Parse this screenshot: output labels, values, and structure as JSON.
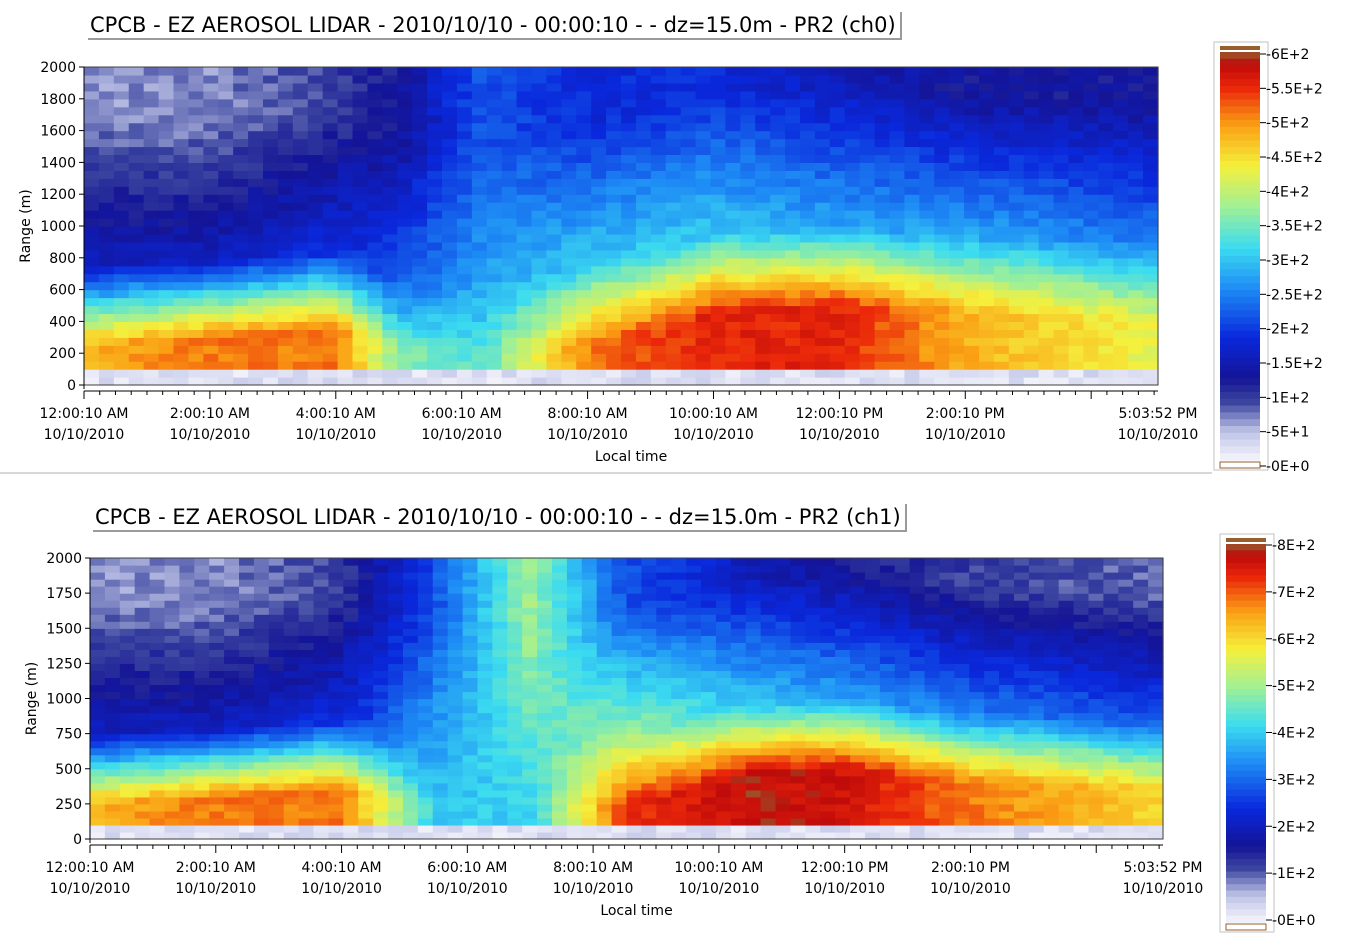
{
  "charts": [
    {
      "title": "CPCB - EZ AEROSOL LIDAR - 2010/10/10 - 00:00:10 -  - dz=15.0m - PR2 (ch0)",
      "chart_data": {
        "type": "heatmap",
        "title": "CPCB - EZ AEROSOL LIDAR - 2010/10/10 - 00:00:10 -  - dz=15.0m - PR2 (ch0)",
        "xlabel": "Local time",
        "ylabel": "Range (m)",
        "ylim": [
          0,
          2000
        ],
        "xlim": [
          "12:00:10 AM",
          "5:03:52 PM"
        ],
        "y_ticks": [
          "0",
          "200",
          "400",
          "600",
          "800",
          "1000",
          "1200",
          "1400",
          "1600",
          "1800",
          "2000"
        ],
        "x_ticks": [
          {
            "time": "12:00:10 AM",
            "date": "10/10/2010"
          },
          {
            "time": "2:00:10 AM",
            "date": "10/10/2010"
          },
          {
            "time": "4:00:10 AM",
            "date": "10/10/2010"
          },
          {
            "time": "6:00:10 AM",
            "date": "10/10/2010"
          },
          {
            "time": "8:00:10 AM",
            "date": "10/10/2010"
          },
          {
            "time": "10:00:10 AM",
            "date": "10/10/2010"
          },
          {
            "time": "12:00:10 PM",
            "date": "10/10/2010"
          },
          {
            "time": "2:00:10 PM",
            "date": "10/10/2010"
          },
          {
            "time": "5:03:52 PM",
            "date": "10/10/2010"
          }
        ],
        "colorbar": {
          "range": [
            0,
            600
          ],
          "labels": [
            "6E+2",
            "5.5E+2",
            "5E+2",
            "4.5E+2",
            "4E+2",
            "3.5E+2",
            "3E+2",
            "2.5E+2",
            "2E+2",
            "1.5E+2",
            "1E+2",
            "5E+1",
            "0E+0"
          ]
        },
        "description_profile": [
          {
            "time_h": 0.0,
            "layer_top_m": 250,
            "layer_level": 0.8,
            "mid_level": 0.25,
            "upper_level": 0.1
          },
          {
            "time_h": 2.0,
            "layer_top_m": 300,
            "layer_level": 0.85,
            "mid_level": 0.25,
            "upper_level": 0.1
          },
          {
            "time_h": 4.0,
            "layer_top_m": 350,
            "layer_level": 0.85,
            "mid_level": 0.3,
            "upper_level": 0.15
          },
          {
            "time_h": 5.0,
            "layer_top_m": 200,
            "layer_level": 0.6,
            "mid_level": 0.35,
            "upper_level": 0.2
          },
          {
            "time_h": 6.3,
            "layer_top_m": 150,
            "layer_level": 0.55,
            "mid_level": 0.45,
            "upper_level": 0.35
          },
          {
            "time_h": 8.0,
            "layer_top_m": 250,
            "layer_level": 0.85,
            "mid_level": 0.5,
            "upper_level": 0.3
          },
          {
            "time_h": 10.0,
            "layer_top_m": 450,
            "layer_level": 0.92,
            "mid_level": 0.5,
            "upper_level": 0.3
          },
          {
            "time_h": 12.0,
            "layer_top_m": 500,
            "layer_level": 0.92,
            "mid_level": 0.45,
            "upper_level": 0.25
          },
          {
            "time_h": 14.0,
            "layer_top_m": 450,
            "layer_level": 0.8,
            "mid_level": 0.45,
            "upper_level": 0.2
          },
          {
            "time_h": 17.06,
            "layer_top_m": 400,
            "layer_level": 0.7,
            "mid_level": 0.4,
            "upper_level": 0.2
          }
        ]
      }
    },
    {
      "title": "CPCB - EZ AEROSOL LIDAR - 2010/10/10 - 00:00:10 -  - dz=15.0m - PR2 (ch1)",
      "chart_data": {
        "type": "heatmap",
        "title": "CPCB - EZ AEROSOL LIDAR - 2010/10/10 - 00:00:10 -  - dz=15.0m - PR2 (ch1)",
        "xlabel": "Local time",
        "ylabel": "Range (m)",
        "ylim": [
          0,
          2000
        ],
        "xlim": [
          "12:00:10 AM",
          "5:03:52 PM"
        ],
        "y_ticks": [
          "0",
          "250",
          "500",
          "750",
          "1000",
          "1250",
          "1500",
          "1750",
          "2000"
        ],
        "x_ticks": [
          {
            "time": "12:00:10 AM",
            "date": "10/10/2010"
          },
          {
            "time": "2:00:10 AM",
            "date": "10/10/2010"
          },
          {
            "time": "4:00:10 AM",
            "date": "10/10/2010"
          },
          {
            "time": "6:00:10 AM",
            "date": "10/10/2010"
          },
          {
            "time": "8:00:10 AM",
            "date": "10/10/2010"
          },
          {
            "time": "10:00:10 AM",
            "date": "10/10/2010"
          },
          {
            "time": "12:00:10 PM",
            "date": "10/10/2010"
          },
          {
            "time": "2:00:10 PM",
            "date": "10/10/2010"
          },
          {
            "time": "5:03:52 PM",
            "date": "10/10/2010"
          }
        ],
        "colorbar": {
          "range": [
            0,
            800
          ],
          "labels": [
            "8E+2",
            "7E+2",
            "6E+2",
            "5E+2",
            "4E+2",
            "3E+2",
            "2E+2",
            "1E+2",
            "0E+0"
          ]
        },
        "description_profile": [
          {
            "time_h": 0.0,
            "layer_top_m": 250,
            "layer_level": 0.8,
            "mid_level": 0.25,
            "upper_level": 0.1
          },
          {
            "time_h": 2.0,
            "layer_top_m": 300,
            "layer_level": 0.85,
            "mid_level": 0.25,
            "upper_level": 0.1
          },
          {
            "time_h": 4.0,
            "layer_top_m": 350,
            "layer_level": 0.85,
            "mid_level": 0.3,
            "upper_level": 0.15
          },
          {
            "time_h": 5.5,
            "layer_top_m": 200,
            "layer_level": 0.5,
            "mid_level": 0.45,
            "upper_level": 0.35
          },
          {
            "time_h": 7.0,
            "layer_top_m": 150,
            "layer_level": 0.5,
            "mid_level": 0.55,
            "upper_level": 0.62
          },
          {
            "time_h": 8.5,
            "layer_top_m": 250,
            "layer_level": 0.9,
            "mid_level": 0.62,
            "upper_level": 0.35
          },
          {
            "time_h": 10.5,
            "layer_top_m": 450,
            "layer_level": 0.97,
            "mid_level": 0.5,
            "upper_level": 0.25
          },
          {
            "time_h": 12.0,
            "layer_top_m": 500,
            "layer_level": 0.95,
            "mid_level": 0.45,
            "upper_level": 0.2
          },
          {
            "time_h": 14.0,
            "layer_top_m": 400,
            "layer_level": 0.85,
            "mid_level": 0.4,
            "upper_level": 0.15
          },
          {
            "time_h": 17.06,
            "layer_top_m": 350,
            "layer_level": 0.75,
            "mid_level": 0.35,
            "upper_level": 0.12
          }
        ]
      }
    }
  ]
}
